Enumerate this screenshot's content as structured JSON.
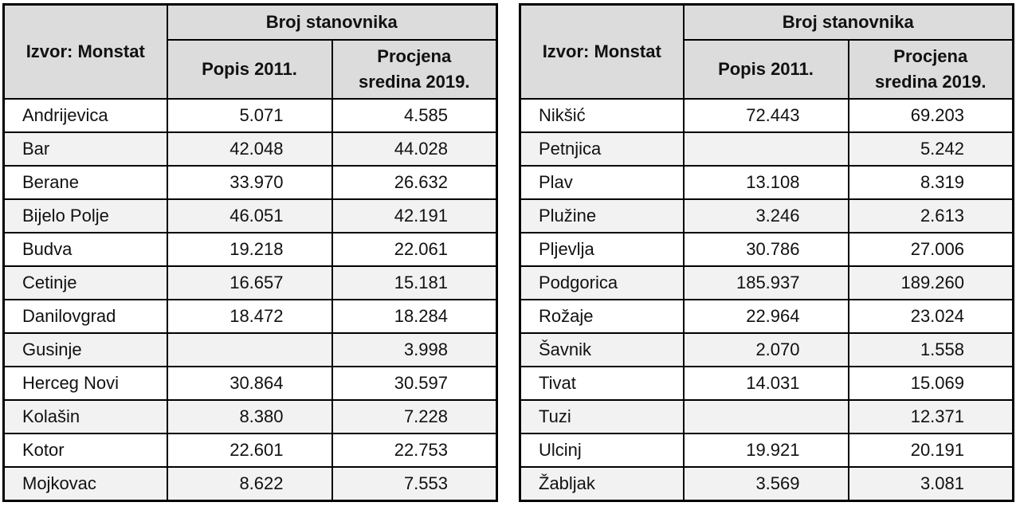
{
  "header": {
    "source_label": "Izvor: Monstat",
    "group_label": "Broj stanovnika",
    "col_census": "Popis 2011.",
    "col_estimate": "Procjena sredina 2019."
  },
  "left_table": {
    "rows": [
      {
        "name": "Andrijevica",
        "census": "5.071",
        "estimate": "4.585"
      },
      {
        "name": "Bar",
        "census": "42.048",
        "estimate": "44.028"
      },
      {
        "name": "Berane",
        "census": "33.970",
        "estimate": "26.632"
      },
      {
        "name": "Bijelo Polje",
        "census": "46.051",
        "estimate": "42.191"
      },
      {
        "name": "Budva",
        "census": "19.218",
        "estimate": "22.061"
      },
      {
        "name": "Cetinje",
        "census": "16.657",
        "estimate": "15.181"
      },
      {
        "name": "Danilovgrad",
        "census": "18.472",
        "estimate": "18.284"
      },
      {
        "name": "Gusinje",
        "census": "",
        "estimate": "3.998"
      },
      {
        "name": "Herceg Novi",
        "census": "30.864",
        "estimate": "30.597"
      },
      {
        "name": "Kolašin",
        "census": "8.380",
        "estimate": "7.228"
      },
      {
        "name": "Kotor",
        "census": "22.601",
        "estimate": "22.753"
      },
      {
        "name": "Mojkovac",
        "census": "8.622",
        "estimate": "7.553"
      }
    ]
  },
  "right_table": {
    "rows": [
      {
        "name": "Nikšić",
        "census": "72.443",
        "estimate": "69.203"
      },
      {
        "name": "Petnjica",
        "census": "",
        "estimate": "5.242"
      },
      {
        "name": "Plav",
        "census": "13.108",
        "estimate": "8.319"
      },
      {
        "name": "Plužine",
        "census": "3.246",
        "estimate": "2.613"
      },
      {
        "name": "Pljevlja",
        "census": "30.786",
        "estimate": "27.006"
      },
      {
        "name": "Podgorica",
        "census": "185.937",
        "estimate": "189.260"
      },
      {
        "name": "Rožaje",
        "census": "22.964",
        "estimate": "23.024"
      },
      {
        "name": "Šavnik",
        "census": "2.070",
        "estimate": "1.558"
      },
      {
        "name": "Tivat",
        "census": "14.031",
        "estimate": "15.069"
      },
      {
        "name": "Tuzi",
        "census": "",
        "estimate": "12.371"
      },
      {
        "name": "Ulcinj",
        "census": "19.921",
        "estimate": "20.191"
      },
      {
        "name": "Žabljak",
        "census": "3.569",
        "estimate": "3.081"
      }
    ]
  }
}
